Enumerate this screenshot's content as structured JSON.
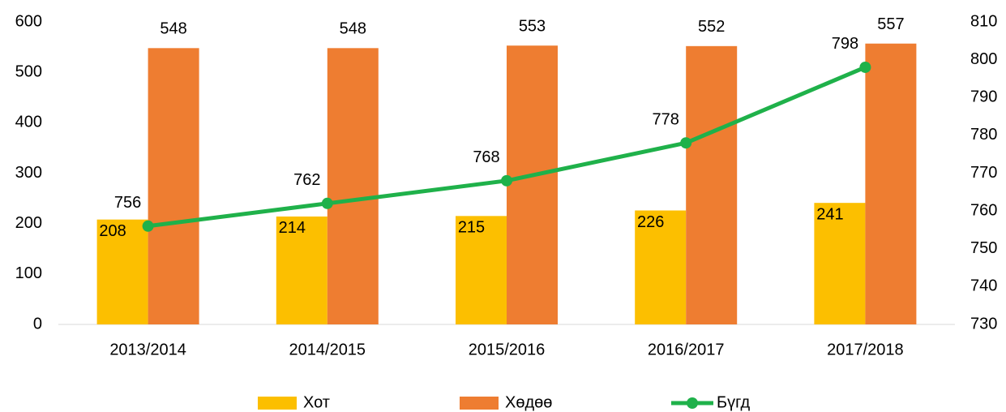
{
  "chart_data": {
    "type": "bar",
    "categories": [
      "2013/2014",
      "2014/2015",
      "2015/2016",
      "2016/2017",
      "2017/2018"
    ],
    "series": [
      {
        "name": "Хот",
        "type": "bar",
        "color": "#fcbf00",
        "values": [
          208,
          214,
          215,
          226,
          241
        ]
      },
      {
        "name": "Хөдөө",
        "type": "bar",
        "color": "#ee7d31",
        "values": [
          548,
          548,
          553,
          552,
          557
        ]
      },
      {
        "name": "Бүгд",
        "type": "line",
        "axis": "y2",
        "color": "#1fb14a",
        "values": [
          756,
          762,
          768,
          778,
          798
        ]
      }
    ],
    "ylim": [
      0,
      600
    ],
    "yticks": [
      0,
      100,
      200,
      300,
      400,
      500,
      600
    ],
    "y2lim": [
      730,
      810
    ],
    "y2ticks": [
      730,
      740,
      750,
      760,
      770,
      780,
      790,
      800,
      810
    ],
    "grid": false,
    "legend": "bottom"
  }
}
